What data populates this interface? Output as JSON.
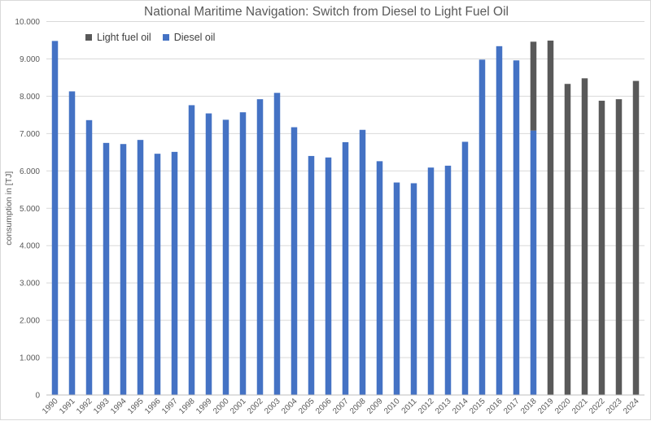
{
  "chart_data": {
    "type": "bar",
    "stacked": true,
    "title": "National Maritime Navigation: Switch from Diesel to Light Fuel Oil",
    "xlabel": "",
    "ylabel": "consumption in [TJ]",
    "ylim": [
      0,
      10000
    ],
    "yticks": [
      "0",
      "1.000",
      "2.000",
      "3.000",
      "4.000",
      "5.000",
      "6.000",
      "7.000",
      "8.000",
      "9.000",
      "10.000"
    ],
    "ytick_values": [
      0,
      1000,
      2000,
      3000,
      4000,
      5000,
      6000,
      7000,
      8000,
      9000,
      10000
    ],
    "grid": true,
    "legend_position": "top-left",
    "categories": [
      "1990",
      "1991",
      "1992",
      "1993",
      "1994",
      "1995",
      "1996",
      "1997",
      "1998",
      "1999",
      "2000",
      "2001",
      "2002",
      "2003",
      "2004",
      "2005",
      "2006",
      "2007",
      "2008",
      "2009",
      "2010",
      "2011",
      "2012",
      "2013",
      "2014",
      "2015",
      "2016",
      "2017",
      "2018",
      "2019",
      "2020",
      "2021",
      "2022",
      "2023",
      "2024"
    ],
    "series": [
      {
        "name": "Light fuel oil",
        "color": "#595959",
        "values": [
          0,
          0,
          0,
          0,
          0,
          0,
          0,
          0,
          0,
          0,
          0,
          0,
          0,
          0,
          0,
          0,
          0,
          0,
          0,
          0,
          0,
          0,
          0,
          0,
          0,
          0,
          0,
          0,
          2380,
          9490,
          8330,
          8480,
          7880,
          7920,
          8410
        ]
      },
      {
        "name": "Diesel oil",
        "color": "#4472c4",
        "values": [
          9480,
          8130,
          7360,
          6750,
          6720,
          6830,
          6460,
          6510,
          7760,
          7540,
          7370,
          7570,
          7920,
          8090,
          7170,
          6400,
          6360,
          6770,
          7100,
          6260,
          5690,
          5670,
          6090,
          6140,
          6780,
          8980,
          9340,
          8960,
          7080,
          0,
          0,
          0,
          0,
          0,
          0
        ]
      }
    ]
  }
}
